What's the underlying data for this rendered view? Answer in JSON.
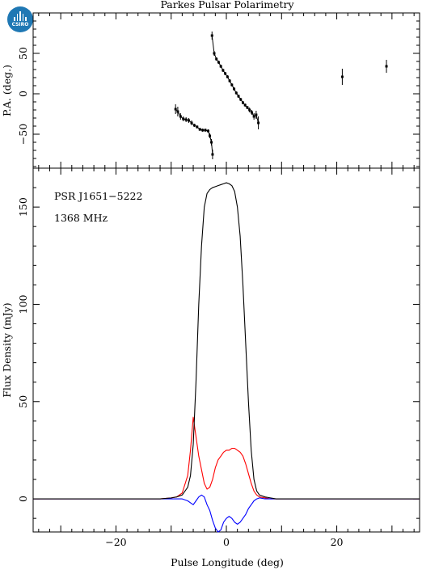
{
  "logo": {
    "text": "CSIRO"
  },
  "chart_data": [
    {
      "type": "scatter",
      "title": "Parkes Pulsar Polarimetry",
      "xlabel": "",
      "ylabel": "P.A. (deg.)",
      "xlim": [
        -35,
        35
      ],
      "ylim": [
        -92,
        100
      ],
      "yticks": [
        -50,
        0,
        50
      ],
      "x_ticks": [
        -20,
        0,
        20
      ],
      "points": [
        {
          "x": -9.2,
          "y": -19,
          "err": 6
        },
        {
          "x": -8.8,
          "y": -22,
          "err": 6
        },
        {
          "x": -8.3,
          "y": -28,
          "err": 4
        },
        {
          "x": -7.8,
          "y": -31,
          "err": 3
        },
        {
          "x": -7.3,
          "y": -32,
          "err": 3
        },
        {
          "x": -6.8,
          "y": -33,
          "err": 3
        },
        {
          "x": -6.3,
          "y": -36,
          "err": 3
        },
        {
          "x": -5.8,
          "y": -39,
          "err": 2
        },
        {
          "x": -5.3,
          "y": -41,
          "err": 2
        },
        {
          "x": -4.8,
          "y": -44,
          "err": 2
        },
        {
          "x": -4.3,
          "y": -45,
          "err": 2
        },
        {
          "x": -3.8,
          "y": -45,
          "err": 2
        },
        {
          "x": -3.3,
          "y": -46,
          "err": 2
        },
        {
          "x": -3.0,
          "y": -52,
          "err": 3
        },
        {
          "x": -2.7,
          "y": -60,
          "err": 4
        },
        {
          "x": -2.5,
          "y": -75,
          "err": 6
        },
        {
          "x": -2.6,
          "y": 72,
          "err": 5
        },
        {
          "x": -2.2,
          "y": 50,
          "err": 3
        },
        {
          "x": -1.8,
          "y": 43,
          "err": 2
        },
        {
          "x": -1.4,
          "y": 39,
          "err": 2
        },
        {
          "x": -1.0,
          "y": 34,
          "err": 2
        },
        {
          "x": -0.6,
          "y": 29,
          "err": 2
        },
        {
          "x": -0.2,
          "y": 25,
          "err": 2
        },
        {
          "x": 0.2,
          "y": 21,
          "err": 2
        },
        {
          "x": 0.6,
          "y": 16,
          "err": 2
        },
        {
          "x": 1.0,
          "y": 11,
          "err": 2
        },
        {
          "x": 1.4,
          "y": 6,
          "err": 2
        },
        {
          "x": 1.8,
          "y": 1,
          "err": 2
        },
        {
          "x": 2.2,
          "y": -3,
          "err": 2
        },
        {
          "x": 2.6,
          "y": -7,
          "err": 2
        },
        {
          "x": 3.0,
          "y": -11,
          "err": 2
        },
        {
          "x": 3.4,
          "y": -14,
          "err": 2
        },
        {
          "x": 3.8,
          "y": -17,
          "err": 2
        },
        {
          "x": 4.2,
          "y": -20,
          "err": 3
        },
        {
          "x": 4.6,
          "y": -23,
          "err": 3
        },
        {
          "x": 5.0,
          "y": -28,
          "err": 4
        },
        {
          "x": 5.4,
          "y": -26,
          "err": 5
        },
        {
          "x": 5.8,
          "y": -36,
          "err": 8
        },
        {
          "x": 21.0,
          "y": 21,
          "err": 10
        },
        {
          "x": 29.0,
          "y": 34,
          "err": 8
        }
      ]
    },
    {
      "type": "line",
      "title": "",
      "xlabel": "Pulse Longitude (deg)",
      "ylabel": "Flux Density (mJy)",
      "xlim": [
        -35,
        35
      ],
      "ylim": [
        -17,
        170
      ],
      "yticks": [
        0,
        50,
        100,
        150
      ],
      "x_ticks": [
        -20,
        0,
        20
      ],
      "annotations": [
        "PSR J1651−5222",
        "1368 MHz"
      ],
      "x": [
        -35,
        -30,
        -25,
        -20,
        -15,
        -12,
        -10,
        -9,
        -8,
        -7,
        -6.5,
        -6,
        -5.5,
        -5,
        -4.5,
        -4,
        -3.5,
        -3,
        -2.5,
        -2,
        -1.5,
        -1,
        -0.5,
        0,
        0.5,
        1,
        1.5,
        2,
        2.5,
        3,
        3.5,
        4,
        4.5,
        5,
        5.5,
        6,
        7,
        8,
        9,
        10,
        12,
        15,
        20,
        25,
        30,
        35
      ],
      "series": [
        {
          "color": "#000000",
          "values": [
            0,
            0,
            0,
            0,
            0,
            0,
            0.5,
            1,
            2,
            6,
            12,
            28,
            60,
            100,
            130,
            150,
            157,
            159,
            160,
            160.5,
            161,
            161.5,
            162,
            162.5,
            162,
            161,
            158,
            150,
            135,
            110,
            80,
            50,
            25,
            10,
            4,
            2,
            1,
            0.5,
            0,
            0,
            0,
            0,
            0,
            0,
            0,
            0
          ]
        },
        {
          "color": "#ff0000",
          "values": [
            0,
            0,
            0,
            0,
            0,
            0,
            0.5,
            1,
            3,
            12,
            25,
            42,
            32,
            22,
            15,
            8,
            5,
            6,
            10,
            16,
            20,
            22,
            24,
            25,
            25,
            26,
            26,
            25,
            24,
            22,
            18,
            13,
            8,
            4,
            2,
            1,
            0.5,
            0,
            0,
            0,
            0,
            0,
            0,
            0,
            0,
            0
          ]
        },
        {
          "color": "#0000ff",
          "values": [
            0,
            0,
            0,
            0,
            0,
            0,
            0,
            0,
            0,
            -1,
            -2,
            -3,
            -1,
            1,
            2,
            1,
            -3,
            -6,
            -11,
            -15,
            -17,
            -16,
            -12,
            -10,
            -9,
            -10,
            -12,
            -13,
            -12,
            -10,
            -8,
            -5,
            -3,
            -1,
            0,
            0.5,
            0,
            0,
            0,
            0,
            0,
            0,
            0,
            0,
            0,
            0
          ]
        }
      ]
    }
  ]
}
